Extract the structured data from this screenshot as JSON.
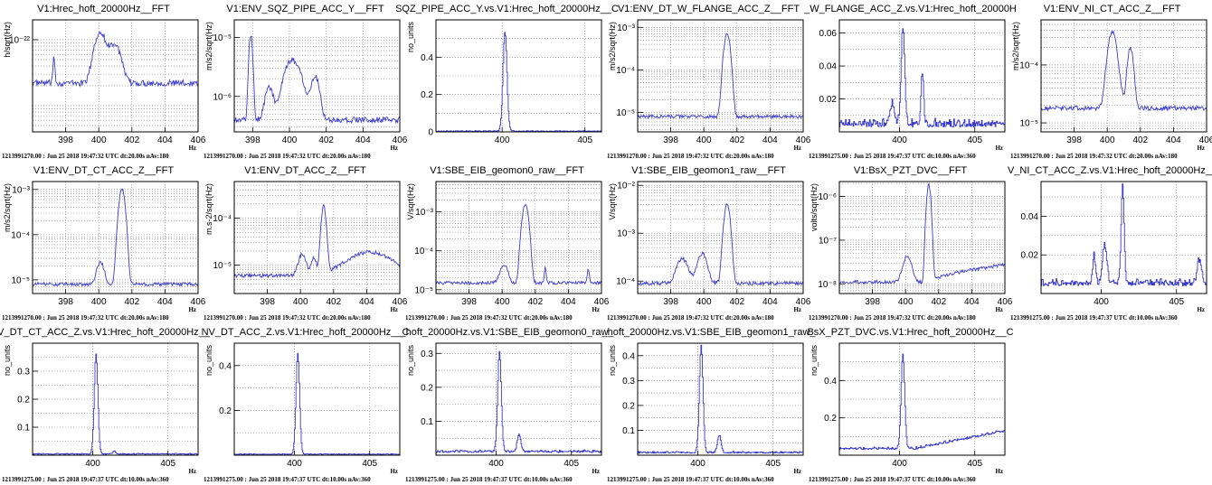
{
  "chart_data": [
    {
      "title": "V1:Hrec_hoft_20000Hz__FFT",
      "ylabel": "h/sqrt(Hz)",
      "xlabel": "Hz",
      "type": "line",
      "yscale": "log",
      "ylim": [
        4e-24,
        2e-22
      ],
      "xlim": [
        396,
        406
      ],
      "xticks": [
        398,
        400,
        402,
        404,
        406
      ],
      "ytick_labels": [
        {
          "v": 1e-22,
          "t": "10⁻²²"
        }
      ],
      "footer": "1213991270.00 : Jun 25 2018 19:47:32 UTC dt:20.00s nAv:180",
      "baseline": 2.2e-23,
      "noise": 0.05,
      "peaks": [
        [
          397.3,
          3.2e-23,
          0.05
        ],
        [
          399.9,
          6.5e-23,
          0.25
        ],
        [
          400.2,
          7e-23,
          0.2
        ],
        [
          401.0,
          6e-23,
          0.3
        ],
        [
          400.6,
          2.4e-23,
          0.2
        ]
      ]
    },
    {
      "title": "V1:ENV_SQZ_PIPE_ACC_Y__FFT",
      "ylabel": "m/s2/sqrt(Hz)",
      "xlabel": "Hz",
      "type": "line",
      "yscale": "log",
      "ylim": [
        2.5e-07,
        2e-05
      ],
      "xlim": [
        397,
        406
      ],
      "xticks": [
        398,
        400,
        402,
        404,
        406
      ],
      "ytick_labels": [
        {
          "v": 1e-05,
          "t": "10⁻⁵"
        },
        {
          "v": 1e-06,
          "t": "10⁻⁶"
        }
      ],
      "footer": "1213991270.00 : Jun 25 2018 19:47:32 UTC dt:20.00s nAv:180",
      "baseline": 4e-07,
      "noise": 0.05,
      "peaks": [
        [
          397.9,
          1.1e-05,
          0.08
        ],
        [
          398.9,
          1e-06,
          0.2
        ],
        [
          400.1,
          3.5e-06,
          0.35
        ],
        [
          401.4,
          1.8e-06,
          0.2
        ],
        [
          400.6,
          9e-07,
          0.3
        ]
      ]
    },
    {
      "title": "SQZ_PIPE_ACC_Y.vs.V1:Hrec_hoft_20000Hz__C",
      "ylabel": "no_units",
      "xlabel": "",
      "type": "step",
      "yscale": "linear",
      "ylim": [
        0,
        0.6
      ],
      "xlim": [
        396,
        406
      ],
      "xticks": [
        400,
        405
      ],
      "ytick_labels": [
        {
          "v": 0,
          "t": "0"
        },
        {
          "v": 0.2,
          "t": "0.2"
        },
        {
          "v": 0.4,
          "t": "0.4"
        }
      ],
      "footer": "",
      "baseline": 0.002,
      "noise": 0.004,
      "peaks": [
        [
          400.15,
          0.53,
          0.12
        ]
      ]
    },
    {
      "title": "V1:ENV_DT_W_FLANGE_ACC_Z__FFT",
      "ylabel": "m/s2/sqrt(Hz)",
      "xlabel": "Hz",
      "type": "line",
      "yscale": "log",
      "ylim": [
        3.5e-06,
        0.0015
      ],
      "xlim": [
        396,
        406
      ],
      "xticks": [
        398,
        400,
        402,
        404,
        406
      ],
      "ytick_labels": [
        {
          "v": 0.001,
          "t": "10⁻³"
        },
        {
          "v": 0.0001,
          "t": "10⁻⁴"
        },
        {
          "v": 1e-05,
          "t": "10⁻⁵"
        }
      ],
      "footer": "1213991270.00 : Jun 25 2018 19:47:32 UTC dt:20.00s nAv:180",
      "baseline": 8e-06,
      "noise": 0.04,
      "peaks": [
        [
          401.4,
          0.0007,
          0.15
        ]
      ]
    },
    {
      "title": "_W_FLANGE_ACC_Z.vs.V1:Hrec_hoft_20000H",
      "ylabel": "",
      "xlabel": "Hz",
      "type": "step",
      "yscale": "linear",
      "ylim": [
        0,
        0.068
      ],
      "xlim": [
        396,
        407
      ],
      "xticks": [
        400,
        405
      ],
      "ytick_labels": [
        {
          "v": 0.02,
          "t": "0.02"
        },
        {
          "v": 0.04,
          "t": "0.04"
        },
        {
          "v": 0.06,
          "t": "0.06"
        }
      ],
      "footer": "1213991275.00 : Jun 25 2018 19:47:37 UTC dt:10.00s nAv:360",
      "baseline": 0.003,
      "noise": 0.004,
      "peaks": [
        [
          400.2,
          0.059,
          0.12
        ],
        [
          401.5,
          0.032,
          0.08
        ],
        [
          399.5,
          0.012,
          0.15
        ]
      ]
    },
    {
      "title": "V1:ENV_NI_CT_ACC_Z__FFT",
      "ylabel": "m/s2/sqrt(Hz)",
      "xlabel": "Hz",
      "type": "line",
      "yscale": "log",
      "ylim": [
        7e-06,
        0.0006
      ],
      "xlim": [
        396,
        406
      ],
      "xticks": [
        398,
        400,
        402,
        404,
        406
      ],
      "ytick_labels": [
        {
          "v": 0.0001,
          "t": "10⁻⁴"
        },
        {
          "v": 1e-05,
          "t": "10⁻⁵"
        }
      ],
      "footer": "1213991270.00 : Jun 25 2018 19:47:32 UTC dt:20.00s nAv:180",
      "baseline": 1.8e-05,
      "noise": 0.04,
      "peaks": [
        [
          400.3,
          0.00035,
          0.22
        ],
        [
          401.4,
          0.00018,
          0.15
        ],
        [
          400.85,
          1.2e-05,
          0.12
        ]
      ]
    },
    {
      "title": "V1:ENV_DT_CT_ACC_Z__FFT",
      "ylabel": "m/s2/sqrt(Hz)",
      "xlabel": "Hz",
      "type": "line",
      "yscale": "log",
      "ylim": [
        5e-06,
        0.0015
      ],
      "xlim": [
        396,
        406
      ],
      "xticks": [
        398,
        400,
        402,
        404,
        406
      ],
      "ytick_labels": [
        {
          "v": 0.001,
          "t": "10⁻³"
        },
        {
          "v": 0.0001,
          "t": "10⁻⁴"
        },
        {
          "v": 1e-05,
          "t": "10⁻⁵"
        }
      ],
      "footer": "1213991270.00 : Jun 25 2018 19:47:32 UTC dt:20.00s nAv:180",
      "baseline": 8e-06,
      "noise": 0.04,
      "peaks": [
        [
          401.4,
          0.001,
          0.15
        ],
        [
          400.1,
          1.6e-05,
          0.2
        ]
      ]
    },
    {
      "title": "V1:ENV_DT_ACC_Z__FFT",
      "ylabel": "m.s-2/sqrt(Hz)",
      "xlabel": "Hz",
      "type": "line",
      "yscale": "log",
      "ylim": [
        2.5e-06,
        0.0006
      ],
      "xlim": [
        396,
        406
      ],
      "xticks": [
        398,
        400,
        402,
        404,
        406
      ],
      "ytick_labels": [
        {
          "v": 0.0001,
          "t": "10⁻⁴"
        },
        {
          "v": 1e-05,
          "t": "10⁻⁵"
        }
      ],
      "footer": "1213991270.00 : Jun 25 2018 19:47:32 UTC dt:20.00s nAv:180",
      "baseline": 6e-06,
      "noise": 0.04,
      "peaks": [
        [
          400.1,
          1.1e-05,
          0.2
        ],
        [
          401.4,
          0.00017,
          0.12
        ],
        [
          404.2,
          1.3e-05,
          1.2
        ],
        [
          400.8,
          8e-06,
          0.15
        ]
      ]
    },
    {
      "title": "V1:SBE_EIB_geomon0_raw__FFT",
      "ylabel": "V/sqrt(Hz)",
      "xlabel": "Hz",
      "type": "line",
      "yscale": "log",
      "ylim": [
        8e-06,
        0.006
      ],
      "xlim": [
        396,
        406
      ],
      "xticks": [
        398,
        400,
        402,
        404,
        406
      ],
      "ytick_labels": [
        {
          "v": 0.001,
          "t": "10⁻³"
        },
        {
          "v": 0.0001,
          "t": "10⁻⁴"
        },
        {
          "v": 1e-05,
          "t": "10⁻⁵"
        }
      ],
      "footer": "1213991270.00 : Jun 25 2018 19:47:32 UTC dt:20.00s nAv:180",
      "baseline": 1.5e-05,
      "noise": 0.04,
      "peaks": [
        [
          401.4,
          0.0015,
          0.15
        ],
        [
          400.1,
          3e-05,
          0.2
        ],
        [
          402.6,
          2.1e-05,
          0.05
        ],
        [
          405.2,
          2.2e-05,
          0.05
        ]
      ]
    },
    {
      "title": "V1:SBE_EIB_geomon1_raw__FFT",
      "ylabel": "V/sqrt(Hz)",
      "xlabel": "Hz",
      "type": "line",
      "yscale": "log",
      "ylim": [
        5.5e-05,
        0.012
      ],
      "xlim": [
        396,
        406
      ],
      "xticks": [
        398,
        400,
        402,
        404,
        406
      ],
      "ytick_labels": [
        {
          "v": 0.01,
          "t": "10⁻²"
        },
        {
          "v": 0.001,
          "t": "10⁻³"
        },
        {
          "v": 0.0001,
          "t": "10⁻⁴"
        }
      ],
      "footer": "1213991270.00 : Jun 25 2018 19:47:32 UTC dt:20.00s nAv:180",
      "baseline": 9e-05,
      "noise": 0.04,
      "peaks": [
        [
          398.7,
          0.0002,
          0.3
        ],
        [
          399.9,
          0.00028,
          0.25
        ],
        [
          401.4,
          0.004,
          0.15
        ]
      ]
    },
    {
      "title": "V1:BsX_PZT_DVC__FFT",
      "ylabel": "volts/sqrt(Hz)",
      "xlabel": "Hz",
      "type": "line",
      "yscale": "log",
      "ylim": [
        6e-09,
        2.2e-06
      ],
      "xlim": [
        396,
        406
      ],
      "xticks": [
        398,
        400,
        402,
        404,
        406
      ],
      "ytick_labels": [
        {
          "v": 1e-06,
          "t": "10⁻⁶"
        },
        {
          "v": 1e-07,
          "t": "10⁻⁷"
        },
        {
          "v": 1e-08,
          "t": "10⁻⁸"
        }
      ],
      "footer": "1213991270.00 : Jun 25 2018 19:47:32 UTC dt:20.00s nAv:180",
      "baseline": 1.1e-08,
      "noise": 0.04,
      "slope": 2.5,
      "peaks": [
        [
          400.1,
          3.2e-08,
          0.22
        ],
        [
          401.4,
          1.8e-06,
          0.1
        ]
      ]
    },
    {
      "title": "V_NI_CT_ACC_Z.vs.V1:Hrec_hoft_20000Hz__",
      "ylabel": "",
      "xlabel": "Hz",
      "type": "step",
      "yscale": "linear",
      "ylim": [
        0,
        0.058
      ],
      "xlim": [
        396,
        407
      ],
      "xticks": [
        400,
        405
      ],
      "ytick_labels": [
        {
          "v": 0.02,
          "t": "0.02"
        },
        {
          "v": 0.04,
          "t": "0.04"
        }
      ],
      "footer": "1213991275.00 : Jun 25 2018 19:47:37 UTC dt:10.00s nAv:360",
      "baseline": 0.004,
      "noise": 0.003,
      "peaks": [
        [
          401.4,
          0.05,
          0.1
        ],
        [
          400.2,
          0.02,
          0.15
        ],
        [
          399.5,
          0.014,
          0.1
        ],
        [
          406.5,
          0.012,
          0.15
        ]
      ]
    },
    {
      "title": "V_DT_CT_ACC_Z.vs.V1:Hrec_hoft_20000Hz__",
      "ylabel": "no_units",
      "xlabel": "Hz",
      "type": "step",
      "yscale": "linear",
      "ylim": [
        0,
        0.4
      ],
      "xlim": [
        396,
        407
      ],
      "xticks": [
        400,
        405
      ],
      "ytick_labels": [
        {
          "v": 0.1,
          "t": "0.1"
        },
        {
          "v": 0.2,
          "t": "0.2"
        },
        {
          "v": 0.3,
          "t": "0.3"
        }
      ],
      "footer": "1213991275.00 : Jun 25 2018 19:47:37 UTC dt:10.00s nAv:360",
      "baseline": 0.003,
      "noise": 0.003,
      "peaks": [
        [
          400.2,
          0.355,
          0.12
        ],
        [
          401.4,
          0.01,
          0.1
        ]
      ]
    },
    {
      "title": "NV_DT_ACC_Z.vs.V1:Hrec_hoft_20000Hz__C",
      "ylabel": "no_units",
      "xlabel": "Hz",
      "type": "step",
      "yscale": "linear",
      "ylim": [
        0,
        0.5
      ],
      "xlim": [
        396,
        407
      ],
      "xticks": [
        400,
        405
      ],
      "ytick_labels": [
        {
          "v": 0.2,
          "t": "0.2"
        },
        {
          "v": 0.4,
          "t": "0.4"
        }
      ],
      "footer": "1213991275.00 : Jun 25 2018 19:47:37 UTC dt:10.00s nAv:360",
      "baseline": 0.003,
      "noise": 0.003,
      "peaks": [
        [
          400.2,
          0.45,
          0.12
        ]
      ]
    },
    {
      "title": "_hoft_20000Hz.vs.V1:SBE_EIB_geomon0_raw_",
      "ylabel": "no_units",
      "xlabel": "Hz",
      "type": "step",
      "yscale": "linear",
      "ylim": [
        0,
        0.33
      ],
      "xlim": [
        396,
        407
      ],
      "xticks": [
        400,
        405
      ],
      "ytick_labels": [
        {
          "v": 0.1,
          "t": "0.1"
        },
        {
          "v": 0.2,
          "t": "0.2"
        },
        {
          "v": 0.3,
          "t": "0.3"
        }
      ],
      "footer": "1213991275.00 : Jun 25 2018 19:47:37 UTC dt:10.00s nAv:360",
      "baseline": 0.008,
      "noise": 0.006,
      "peaks": [
        [
          400.2,
          0.295,
          0.12
        ],
        [
          401.5,
          0.05,
          0.12
        ]
      ]
    },
    {
      "title": "_hoft_20000Hz.vs.V1:SBE_EIB_geomon1_raw_",
      "ylabel": "no_units",
      "xlabel": "Hz",
      "type": "step",
      "yscale": "linear",
      "ylim": [
        0,
        0.45
      ],
      "xlim": [
        396,
        407
      ],
      "xticks": [
        400,
        405
      ],
      "ytick_labels": [
        {
          "v": 0.1,
          "t": "0.1"
        },
        {
          "v": 0.2,
          "t": "0.2"
        },
        {
          "v": 0.3,
          "t": "0.3"
        },
        {
          "v": 0.4,
          "t": "0.4"
        }
      ],
      "footer": "1213991275.00 : Jun 25 2018 19:47:37 UTC dt:10.00s nAv:360",
      "baseline": 0.008,
      "noise": 0.006,
      "peaks": [
        [
          400.2,
          0.43,
          0.12
        ],
        [
          401.4,
          0.07,
          0.12
        ]
      ]
    },
    {
      "title": "BsX_PZT_DVC.vs.V1:Hrec_hoft_20000Hz__C",
      "ylabel": "no_units",
      "xlabel": "Hz",
      "type": "step",
      "yscale": "linear",
      "ylim": [
        0,
        0.6
      ],
      "xlim": [
        396,
        407
      ],
      "xticks": [
        400,
        405
      ],
      "ytick_labels": [
        {
          "v": 0.2,
          "t": "0.2"
        },
        {
          "v": 0.4,
          "t": "0.4"
        }
      ],
      "footer": "1213991275.00 : Jun 25 2018 19:47:37 UTC dt:10.00s nAv:360",
      "baseline": 0.03,
      "noise": 0.012,
      "slope": 0.016,
      "peaks": [
        [
          400.2,
          0.5,
          0.12
        ]
      ]
    }
  ],
  "colors": {
    "trace": "#3b3bcc",
    "grid": "#777777",
    "axis": "#000000"
  }
}
